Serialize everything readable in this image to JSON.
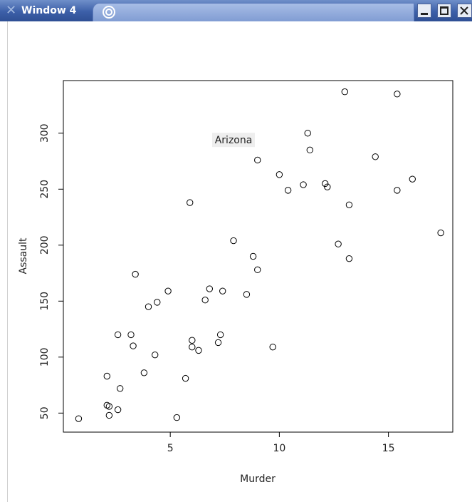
{
  "window": {
    "title": "Window 4",
    "title_icon": "x-close-icon",
    "tab_icon": "swirl-icon",
    "buttons": [
      "minimize-icon",
      "maximize-icon",
      "close-icon"
    ]
  },
  "chart_data": {
    "type": "scatter",
    "title": "",
    "xlabel": "Murder",
    "ylabel": "Assault",
    "xlim": [
      0.1,
      17.95
    ],
    "ylim": [
      33,
      347
    ],
    "xticks": [
      5,
      10,
      15
    ],
    "yticks": [
      50,
      100,
      150,
      200,
      250,
      300
    ],
    "grid": false,
    "annotation": {
      "text": "Arizona",
      "x": 7.9,
      "y": 294
    },
    "points": [
      [
        13.2,
        236
      ],
      [
        10.0,
        263
      ],
      [
        8.1,
        294
      ],
      [
        8.8,
        190
      ],
      [
        9.0,
        276
      ],
      [
        7.9,
        204
      ],
      [
        3.3,
        110
      ],
      [
        5.9,
        238
      ],
      [
        15.4,
        335
      ],
      [
        17.4,
        211
      ],
      [
        5.3,
        46
      ],
      [
        2.6,
        120
      ],
      [
        10.4,
        249
      ],
      [
        7.2,
        113
      ],
      [
        2.2,
        56
      ],
      [
        6.0,
        115
      ],
      [
        9.7,
        109
      ],
      [
        15.4,
        249
      ],
      [
        2.1,
        83
      ],
      [
        11.3,
        300
      ],
      [
        4.4,
        149
      ],
      [
        12.1,
        255
      ],
      [
        2.7,
        72
      ],
      [
        16.1,
        259
      ],
      [
        9.0,
        178
      ],
      [
        6.0,
        109
      ],
      [
        4.3,
        102
      ],
      [
        12.2,
        252
      ],
      [
        2.1,
        57
      ],
      [
        7.4,
        159
      ],
      [
        11.4,
        285
      ],
      [
        11.1,
        254
      ],
      [
        13.0,
        337
      ],
      [
        0.8,
        45
      ],
      [
        7.3,
        120
      ],
      [
        6.6,
        151
      ],
      [
        4.9,
        159
      ],
      [
        6.3,
        106
      ],
      [
        3.4,
        174
      ],
      [
        14.4,
        279
      ],
      [
        3.8,
        86
      ],
      [
        13.2,
        188
      ],
      [
        12.7,
        201
      ],
      [
        3.2,
        120
      ],
      [
        2.2,
        48
      ],
      [
        8.5,
        156
      ],
      [
        4.0,
        145
      ],
      [
        5.7,
        81
      ],
      [
        2.6,
        53
      ],
      [
        6.8,
        161
      ]
    ]
  }
}
